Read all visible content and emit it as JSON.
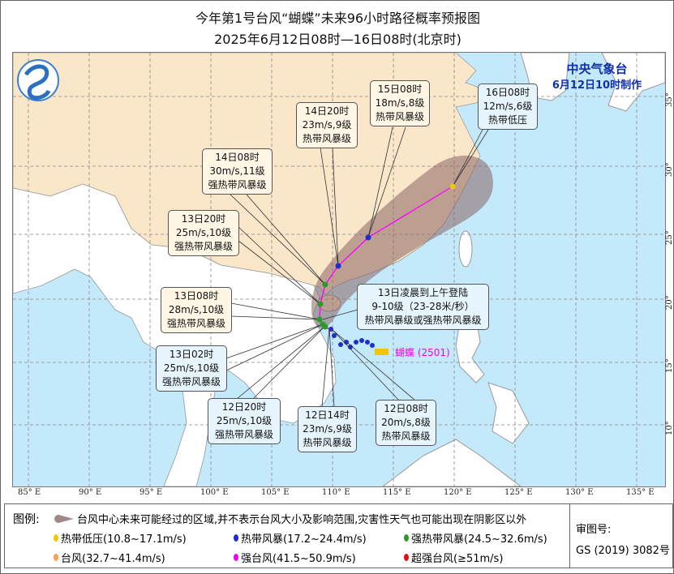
{
  "header": {
    "title": "今年第1号台风“蝴蝶”未来96小时路径概率预报图",
    "subtitle": "2025年6月12日08时—16日08时(北京时)"
  },
  "agency": {
    "name": "中央气象台",
    "made": "6月12日10时制作"
  },
  "typhoon_label": "蝴蝶 (2501)",
  "landfall": {
    "line1": "13日凌晨到上午登陆",
    "line2": "9-10级（23-28米/秒）",
    "line3": "热带风暴级或强热带风暴级"
  },
  "forecasts": [
    {
      "time": "12日08时",
      "wind": "20m/s,8级",
      "grade": "热带风暴级"
    },
    {
      "time": "12日14时",
      "wind": "23m/s,9级",
      "grade": "热带风暴级"
    },
    {
      "time": "12日20时",
      "wind": "25m/s,10级",
      "grade": "强热带风暴级"
    },
    {
      "time": "13日02时",
      "wind": "25m/s,10级",
      "grade": "强热带风暴级"
    },
    {
      "time": "13日08时",
      "wind": "28m/s,10级",
      "grade": "强热带风暴级"
    },
    {
      "time": "13日20时",
      "wind": "25m/s,10级",
      "grade": "强热带风暴级"
    },
    {
      "time": "14日08时",
      "wind": "30m/s,11级",
      "grade": "强热带风暴级"
    },
    {
      "time": "14日20时",
      "wind": "23m/s,9级",
      "grade": "热带风暴级"
    },
    {
      "time": "15日08时",
      "wind": "18m/s,8级",
      "grade": "热带风暴级"
    },
    {
      "time": "16日08时",
      "wind": "12m/s,6级",
      "grade": "热带低压"
    }
  ],
  "lon_labels": [
    "85° E",
    "90° E",
    "95° E",
    "100° E",
    "105° E",
    "110° E",
    "115° E",
    "120° E",
    "125° E",
    "130° E",
    "135° E"
  ],
  "lat_labels": [
    "35° N",
    "30° N",
    "25° N",
    "20° N",
    "15° N",
    "10° N"
  ],
  "legend": {
    "title": "图例:",
    "cone": "台风中心未来可能经过的区域,并不表示台风大小及影响范围,灾害性天气也可能出现在阴影区以外",
    "items": [
      {
        "label": "热带低压(10.8~17.1m/s)",
        "color": "#f0c800"
      },
      {
        "label": "热带风暴(17.2~24.4m/s)",
        "color": "#1a2fd0"
      },
      {
        "label": "强热带风暴(24.5~32.6m/s)",
        "color": "#2a9a2a"
      },
      {
        "label": "台风(32.7~41.4m/s)",
        "color": "#f7a050"
      },
      {
        "label": "强台风(41.5~50.9m/s)",
        "color": "#f000f0"
      },
      {
        "label": "超强台风(≥51m/s)",
        "color": "#e01010"
      }
    ],
    "review_label": "审图号:",
    "review_number": "GS (2019) 3082号"
  },
  "colors": {
    "sea": "#c4e9fb",
    "china_land": "#fae7c9",
    "other_land": "#ffffff",
    "cone": "#8a6464",
    "track": "#ff00ff"
  }
}
